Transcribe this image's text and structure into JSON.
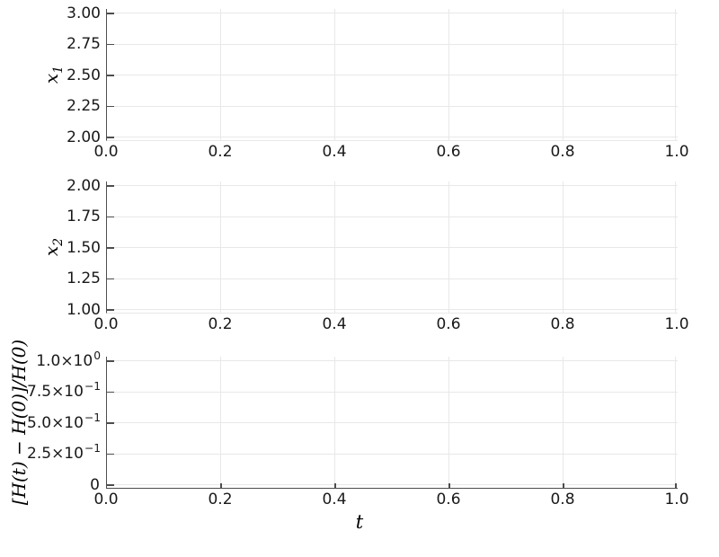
{
  "figure": {
    "background_color": "#ffffff",
    "spine_color": "#4d4d4d",
    "grid_color": "#e8e8e8",
    "text_color": "#191919"
  },
  "x_ticks": [
    "0.0",
    "0.2",
    "0.4",
    "0.6",
    "0.8",
    "1.0"
  ],
  "x_label": "t",
  "subplot1": {
    "ylabel_main": "x",
    "ylabel_sub": "1",
    "yticks": [
      "3.00",
      "2.75",
      "2.50",
      "2.25",
      "2.00"
    ]
  },
  "subplot2": {
    "ylabel_main": "x",
    "ylabel_sub": "2",
    "yticks": [
      "2.00",
      "1.75",
      "1.50",
      "1.25",
      "1.00"
    ]
  },
  "subplot3": {
    "ylabel": "[H(t) − H(0)]/H(0)",
    "yticks_m": [
      "1.0×10",
      "7.5×10",
      "5.0×10",
      "2.5×10",
      "0"
    ],
    "yticks_e": [
      "0",
      "−1",
      "−1",
      "−1",
      ""
    ]
  },
  "chart_data": [
    {
      "type": "line",
      "series": [],
      "title": "",
      "xlabel": "",
      "ylabel": "x_1",
      "xlim": [
        0.0,
        1.0
      ],
      "ylim": [
        2.0,
        3.0
      ],
      "xticks": [
        "0.0",
        "0.2",
        "0.4",
        "0.6",
        "0.8",
        "1.0"
      ],
      "yticks": [
        "2.00",
        "2.25",
        "2.50",
        "2.75",
        "3.00"
      ],
      "grid": true,
      "legend": "none",
      "note": "empty axes, no data series plotted"
    },
    {
      "type": "line",
      "series": [],
      "title": "",
      "xlabel": "",
      "ylabel": "x_2",
      "xlim": [
        0.0,
        1.0
      ],
      "ylim": [
        1.0,
        2.0
      ],
      "xticks": [
        "0.0",
        "0.2",
        "0.4",
        "0.6",
        "0.8",
        "1.0"
      ],
      "yticks": [
        "1.00",
        "1.25",
        "1.50",
        "1.75",
        "2.00"
      ],
      "grid": true,
      "legend": "none",
      "note": "empty axes, no data series plotted"
    },
    {
      "type": "line",
      "series": [],
      "title": "",
      "xlabel": "t",
      "ylabel": "[H(t) − H(0)]/H(0)",
      "xlim": [
        0.0,
        1.0
      ],
      "ylim": [
        0,
        1.0
      ],
      "xticks": [
        "0.0",
        "0.2",
        "0.4",
        "0.6",
        "0.8",
        "1.0"
      ],
      "yticks": [
        "0",
        "2.5×10^−1",
        "5.0×10^−1",
        "7.5×10^−1",
        "1.0×10^0"
      ],
      "grid": true,
      "legend": "none",
      "note": "empty axes, no data series plotted"
    }
  ]
}
